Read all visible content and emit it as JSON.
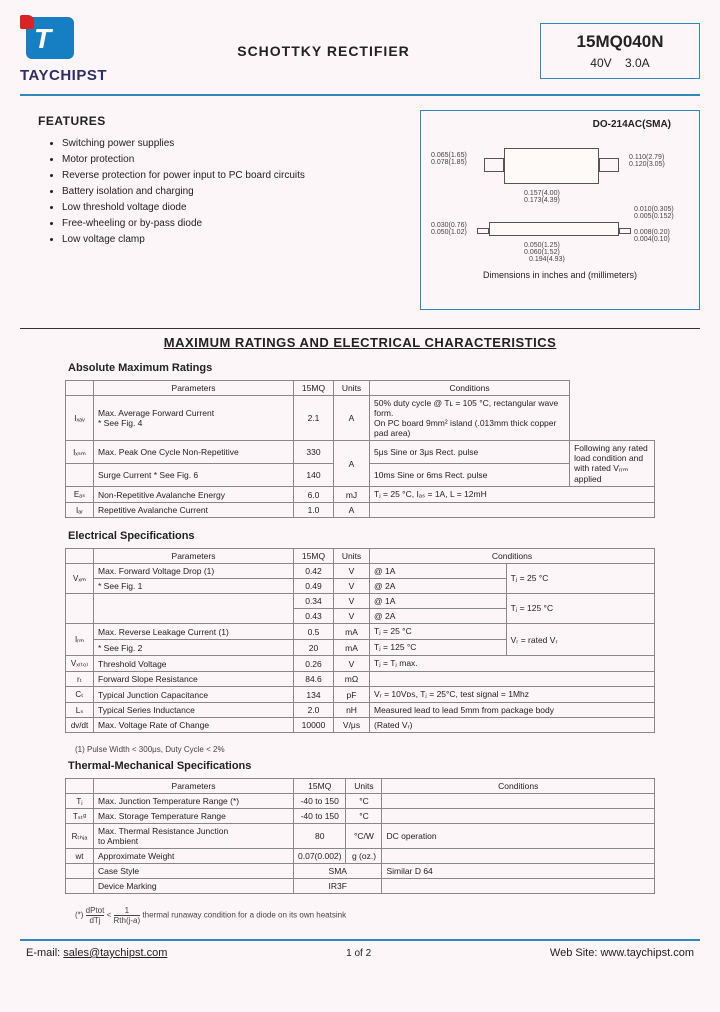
{
  "header": {
    "company": "TAYCHIPST",
    "product_title": "SCHOTTKY RECTIFIER",
    "part_number": "15MQ040N",
    "voltage": "40V",
    "current": "3.0A"
  },
  "features": {
    "title": "FEATURES",
    "items": [
      "Switching power supplies",
      "Motor protection",
      "Reverse protection for power input  to PC board circuits",
      "Battery isolation and charging",
      "Low threshold voltage diode",
      "Free-wheeling or by-pass diode",
      "Low voltage clamp"
    ]
  },
  "package": {
    "title": "DO-214AC(SMA)",
    "note": "Dimensions in inches and (millimeters)",
    "dims": {
      "d1": "0.065(1.65)\n0.078(1.85)",
      "d2": "0.110(2.79)\n0.120(3.05)",
      "d3": "0.157(4.00)\n0.173(4.39)",
      "d4": "0.010(0.305)\n0.005(0.152)",
      "d5": "0.030(0.76)\n0.050(1.02)",
      "d6": "0.008(0.20)\n0.004(0.10)",
      "d7": "0.050(1.25)\n0.060(1.52)",
      "d8": "0.194(4.93)"
    }
  },
  "section_title": "MAXIMUM RATINGS AND ELECTRICAL CHARACTERISTICS",
  "t1": {
    "title": "Absolute Maximum Ratings",
    "headers": [
      "",
      "Parameters",
      "15MQ",
      "Units",
      "Conditions"
    ],
    "rows": [
      {
        "sym": "Iₓₐᵥ",
        "param": "Max. Average Forward Current\n* See Fig. 4",
        "val": "2.1",
        "unit": "A",
        "cond": "50% duty cycle @ Tʟ = 105 °C, rectangular wave form.\nOn PC board 9mm² island (.013mm thick copper pad area)"
      },
      {
        "sym": "Iₓₛₘ",
        "param": "Max. Peak One Cycle Non-Repetitive",
        "val": "330",
        "unit": "A",
        "cond": "5μs Sine or 3μs Rect. pulse",
        "condrow": "Following any rated\nload condition and\nwith rated Vᵣᵣₘ applied"
      },
      {
        "sym": "",
        "param": "Surge Current * See Fig. 6",
        "val": "140",
        "unit": "",
        "cond": "10ms Sine or 6ms Rect. pulse"
      },
      {
        "sym": "Eₐₛ",
        "param": "Non-Repetitive Avalanche Energy",
        "val": "6.0",
        "unit": "mJ",
        "cond": "Tⱼ = 25 °C, Iₐₛ = 1A, L = 12mH"
      },
      {
        "sym": "Iₐᵣ",
        "param": "Repetitive Avalanche Current",
        "val": "1.0",
        "unit": "A",
        "cond": ""
      }
    ]
  },
  "t2": {
    "title": "Electrical Specifications",
    "headers": [
      "",
      "Parameters",
      "15MQ",
      "Units",
      "Conditions"
    ],
    "rows": [
      {
        "sym": "Vₓₘ",
        "param": "Max. Forward Voltage Drop      (1)",
        "val": "0.42",
        "unit": "V",
        "cond1": "@  1A",
        "cond2": "Tⱼ =   25 °C"
      },
      {
        "sym": "",
        "param": "* See Fig. 1",
        "val": "0.49",
        "unit": "V",
        "cond1": "@  2A"
      },
      {
        "sym": "",
        "param": "",
        "val": "0.34",
        "unit": "V",
        "cond1": "@  1A",
        "cond2": "Tⱼ = 125 °C"
      },
      {
        "sym": "",
        "param": "",
        "val": "0.43",
        "unit": "V",
        "cond1": "@  2A"
      },
      {
        "sym": "Iᵣₘ",
        "param": "Max. Reverse Leakage Current (1)",
        "val": "0.5",
        "unit": "mA",
        "cond1": "Tⱼ =   25 °C",
        "cond2": "Vᵣ = rated Vᵣ"
      },
      {
        "sym": "",
        "param": "* See Fig. 2",
        "val": "20",
        "unit": "mA",
        "cond1": "Tⱼ = 125 °C"
      },
      {
        "sym": "Vₓ₍ₜₒ₎",
        "param": "Threshold Voltage",
        "val": "0.26",
        "unit": "V",
        "cond": "Tⱼ = Tⱼ max."
      },
      {
        "sym": "rₜ",
        "param": "Forward Slope Resistance",
        "val": "84.6",
        "unit": "mΩ",
        "cond": ""
      },
      {
        "sym": "Cₜ",
        "param": "Typical Junction Capacitance",
        "val": "134",
        "unit": "pF",
        "cond": "Vᵣ = 10Vᴅꜱ, Tⱼ = 25°C, test signal = 1Mhz"
      },
      {
        "sym": "Lₛ",
        "param": "Typical Series Inductance",
        "val": "2.0",
        "unit": "nH",
        "cond": "Measured lead to lead 5mm from package body"
      },
      {
        "sym": "dv/dt",
        "param": "Max. Voltage Rate of Change",
        "val": "10000",
        "unit": "V/μs",
        "cond": "(Rated Vᵣ)"
      }
    ],
    "note": "(1) Pulse Width < 300μs, Duty Cycle < 2%"
  },
  "t3": {
    "title": "Thermal-Mechanical Specifications",
    "headers": [
      "",
      "Parameters",
      "15MQ",
      "Units",
      "Conditions"
    ],
    "rows": [
      {
        "sym": "Tⱼ",
        "param": "Max. Junction Temperature Range (*)",
        "val": "-40 to 150",
        "unit": "°C",
        "cond": ""
      },
      {
        "sym": "Tₛₜᵍ",
        "param": "Max. Storage Temperature Range",
        "val": "-40 to 150",
        "unit": "°C",
        "cond": ""
      },
      {
        "sym": "Rₜₕⱼₐ",
        "param": "Max. Thermal Resistance Junction\nto Ambient",
        "val": "80",
        "unit": "°C/W",
        "cond": "DC operation"
      },
      {
        "sym": "wt",
        "param": "Approximate Weight",
        "val": "0.07(0.002)",
        "unit": "g (oz.)",
        "cond": ""
      },
      {
        "sym": "",
        "param": "Case Style",
        "val": "SMA",
        "unit": "",
        "cond": "Similar D 64"
      },
      {
        "sym": "",
        "param": "Device Marking",
        "val": "IR3F",
        "unit": "",
        "cond": ""
      }
    ],
    "note_pre": "(*) ",
    "note_frac_top": "dPtot",
    "note_frac_bot": "dTj",
    "note_mid": " <  ",
    "note_frac2_top": "1",
    "note_frac2_bot": "Rth(j-a)",
    "note_post": "  thermal runaway condition for a diode on its own heatsink"
  },
  "footer": {
    "email_label": "E-mail: ",
    "email": "sales@taychipst.com",
    "page": "1  of  2",
    "web_label": "Web Site: ",
    "web": "www.taychipst.com"
  },
  "colors": {
    "blue": "#38b",
    "bg": "#fdf6f8"
  }
}
